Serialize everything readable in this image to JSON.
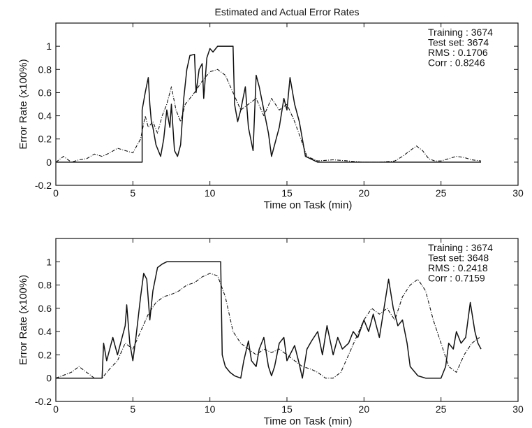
{
  "figure": {
    "title": "Estimated and Actual Error Rates"
  },
  "chart_data": [
    {
      "type": "line",
      "title": "Estimated and Actual Error Rates",
      "xlabel": "Time on Task (min)",
      "ylabel": "Error Rate (x100%)",
      "xlim": [
        0,
        30
      ],
      "ylim": [
        -0.2,
        1.2
      ],
      "xticks": [
        0,
        5,
        10,
        15,
        20,
        25,
        30
      ],
      "yticks": [
        -0.2,
        0,
        0.2,
        0.4,
        0.6,
        0.8,
        1
      ],
      "grid": false,
      "annotations": [
        "Training : 3674",
        "Test set: 3674",
        "RMS : 0.1706",
        "Corr : 0.8246"
      ],
      "series": [
        {
          "style": "solid",
          "x": [
            0,
            5.6,
            5.6,
            5.8,
            6.0,
            6.1,
            6.2,
            6.3,
            6.5,
            6.8,
            7.0,
            7.2,
            7.4,
            7.5,
            7.7,
            7.9,
            8.1,
            8.3,
            8.5,
            8.7,
            9.0,
            9.1,
            9.3,
            9.5,
            9.6,
            9.8,
            10.0,
            10.2,
            10.5,
            11.0,
            11.5,
            11.6,
            11.8,
            12.0,
            12.3,
            12.5,
            12.8,
            13.0,
            13.2,
            13.5,
            13.8,
            14.0,
            14.5,
            14.8,
            15.0,
            15.2,
            15.5,
            15.8,
            16.2,
            17,
            20,
            25,
            27.6
          ],
          "y": [
            0,
            0,
            0.45,
            0.6,
            0.73,
            0.5,
            0.35,
            0.3,
            0.15,
            0.05,
            0.2,
            0.45,
            0.3,
            0.5,
            0.1,
            0.05,
            0.15,
            0.55,
            0.8,
            0.92,
            0.93,
            0.6,
            0.8,
            0.85,
            0.55,
            0.9,
            0.98,
            0.95,
            1.0,
            1.0,
            1.0,
            0.5,
            0.35,
            0.45,
            0.65,
            0.3,
            0.1,
            0.75,
            0.65,
            0.45,
            0.25,
            0.05,
            0.3,
            0.55,
            0.45,
            0.73,
            0.5,
            0.35,
            0.05,
            0,
            0,
            0,
            0
          ]
        },
        {
          "style": "dashdot",
          "x": [
            0,
            0.5,
            1,
            1.5,
            2,
            2.5,
            3,
            3.5,
            4,
            4.5,
            5,
            5.5,
            5.8,
            6.0,
            6.3,
            6.6,
            6.9,
            7.2,
            7.5,
            7.8,
            8.1,
            8.4,
            8.7,
            9.0,
            9.5,
            10.0,
            10.5,
            11.0,
            11.5,
            12.0,
            12.5,
            13.0,
            13.5,
            14.0,
            14.5,
            15.0,
            15.5,
            15.9,
            16.3,
            17,
            18,
            19,
            20,
            21,
            22,
            22.5,
            23,
            23.4,
            23.8,
            24.2,
            24.6,
            25,
            25.5,
            26,
            26.5,
            27,
            27.6
          ],
          "y": [
            0,
            0.05,
            0,
            0.02,
            0.03,
            0.07,
            0.05,
            0.08,
            0.12,
            0.1,
            0.08,
            0.2,
            0.4,
            0.3,
            0.35,
            0.25,
            0.4,
            0.5,
            0.65,
            0.45,
            0.35,
            0.5,
            0.55,
            0.6,
            0.7,
            0.78,
            0.8,
            0.75,
            0.6,
            0.45,
            0.5,
            0.55,
            0.4,
            0.55,
            0.45,
            0.5,
            0.35,
            0.2,
            0.05,
            0.01,
            0.02,
            0.01,
            0,
            0,
            0.01,
            0.05,
            0.1,
            0.14,
            0.1,
            0.03,
            0.01,
            0.01,
            0.03,
            0.05,
            0.04,
            0.02,
            0.01
          ]
        }
      ]
    },
    {
      "type": "line",
      "xlabel": "Time on Task (min)",
      "ylabel": "Error Rate (x100%)",
      "xlim": [
        0,
        30
      ],
      "ylim": [
        -0.2,
        1.2
      ],
      "xticks": [
        0,
        5,
        10,
        15,
        20,
        25,
        30
      ],
      "yticks": [
        -0.2,
        0,
        0.2,
        0.4,
        0.6,
        0.8,
        1
      ],
      "grid": false,
      "annotations": [
        "Training : 3674",
        "Test set: 3648",
        "RMS : 0.2418",
        "Corr : 0.7159"
      ],
      "series": [
        {
          "style": "solid",
          "x": [
            0,
            3.0,
            3.1,
            3.3,
            3.5,
            3.7,
            4.0,
            4.3,
            4.5,
            4.6,
            4.8,
            5.0,
            5.2,
            5.5,
            5.7,
            5.9,
            6.1,
            6.3,
            6.6,
            6.9,
            7.2,
            7.5,
            8.0,
            9.0,
            10.0,
            10.7,
            10.8,
            11.0,
            11.3,
            11.6,
            12.0,
            12.2,
            12.5,
            12.7,
            13.0,
            13.2,
            13.5,
            13.8,
            14.0,
            14.2,
            14.5,
            14.8,
            15.0,
            15.5,
            15.8,
            16.0,
            16.3,
            16.6,
            17.0,
            17.3,
            17.6,
            18.0,
            18.3,
            18.6,
            19.0,
            19.3,
            19.6,
            20.0,
            20.3,
            20.6,
            21.0,
            21.3,
            21.6,
            21.9,
            22.2,
            22.5,
            22.8,
            23.0,
            23.5,
            24.0,
            25.0,
            25.3,
            25.5,
            25.8,
            26.0,
            26.3,
            26.6,
            26.9,
            27.2,
            27.4,
            27.6
          ],
          "y": [
            0,
            0,
            0.3,
            0.15,
            0.25,
            0.35,
            0.2,
            0.35,
            0.45,
            0.63,
            0.3,
            0.15,
            0.35,
            0.7,
            0.9,
            0.85,
            0.5,
            0.75,
            0.95,
            0.98,
            1.0,
            1.0,
            1.0,
            1.0,
            1.0,
            1.0,
            0.2,
            0.1,
            0.05,
            0.02,
            0.0,
            0.15,
            0.32,
            0.15,
            0.1,
            0.25,
            0.35,
            0.1,
            0.02,
            0.1,
            0.3,
            0.35,
            0.15,
            0.28,
            0.12,
            0.0,
            0.25,
            0.32,
            0.4,
            0.2,
            0.45,
            0.2,
            0.35,
            0.25,
            0.3,
            0.4,
            0.35,
            0.5,
            0.4,
            0.55,
            0.35,
            0.6,
            0.85,
            0.6,
            0.45,
            0.5,
            0.3,
            0.1,
            0.02,
            0.0,
            0.0,
            0.1,
            0.3,
            0.25,
            0.4,
            0.3,
            0.35,
            0.65,
            0.4,
            0.3,
            0.25
          ]
        },
        {
          "style": "dashdot",
          "x": [
            0,
            1,
            1.5,
            2,
            2.5,
            3,
            3.5,
            4,
            4.5,
            5,
            5.5,
            6,
            6.5,
            7,
            7.5,
            8,
            8.5,
            9,
            9.5,
            10,
            10.5,
            11,
            11.5,
            12,
            12.5,
            13,
            13.5,
            14,
            14.5,
            15,
            15.5,
            16,
            16.5,
            17,
            17.5,
            18,
            18.5,
            19,
            19.5,
            20,
            20.5,
            21,
            21.5,
            22,
            22.5,
            23,
            23.5,
            24,
            24.5,
            25,
            25.5,
            26,
            26.5,
            27,
            27.5
          ],
          "y": [
            0,
            0.05,
            0.1,
            0.05,
            0,
            0,
            0.08,
            0.15,
            0.3,
            0.25,
            0.4,
            0.55,
            0.65,
            0.7,
            0.72,
            0.75,
            0.8,
            0.82,
            0.87,
            0.9,
            0.88,
            0.7,
            0.4,
            0.3,
            0.25,
            0.2,
            0.25,
            0.22,
            0.25,
            0.2,
            0.15,
            0.1,
            0.08,
            0.05,
            0.0,
            0.0,
            0.05,
            0.2,
            0.35,
            0.5,
            0.6,
            0.55,
            0.6,
            0.5,
            0.7,
            0.8,
            0.85,
            0.75,
            0.5,
            0.3,
            0.1,
            0.05,
            0.2,
            0.3,
            0.35
          ]
        }
      ]
    }
  ]
}
